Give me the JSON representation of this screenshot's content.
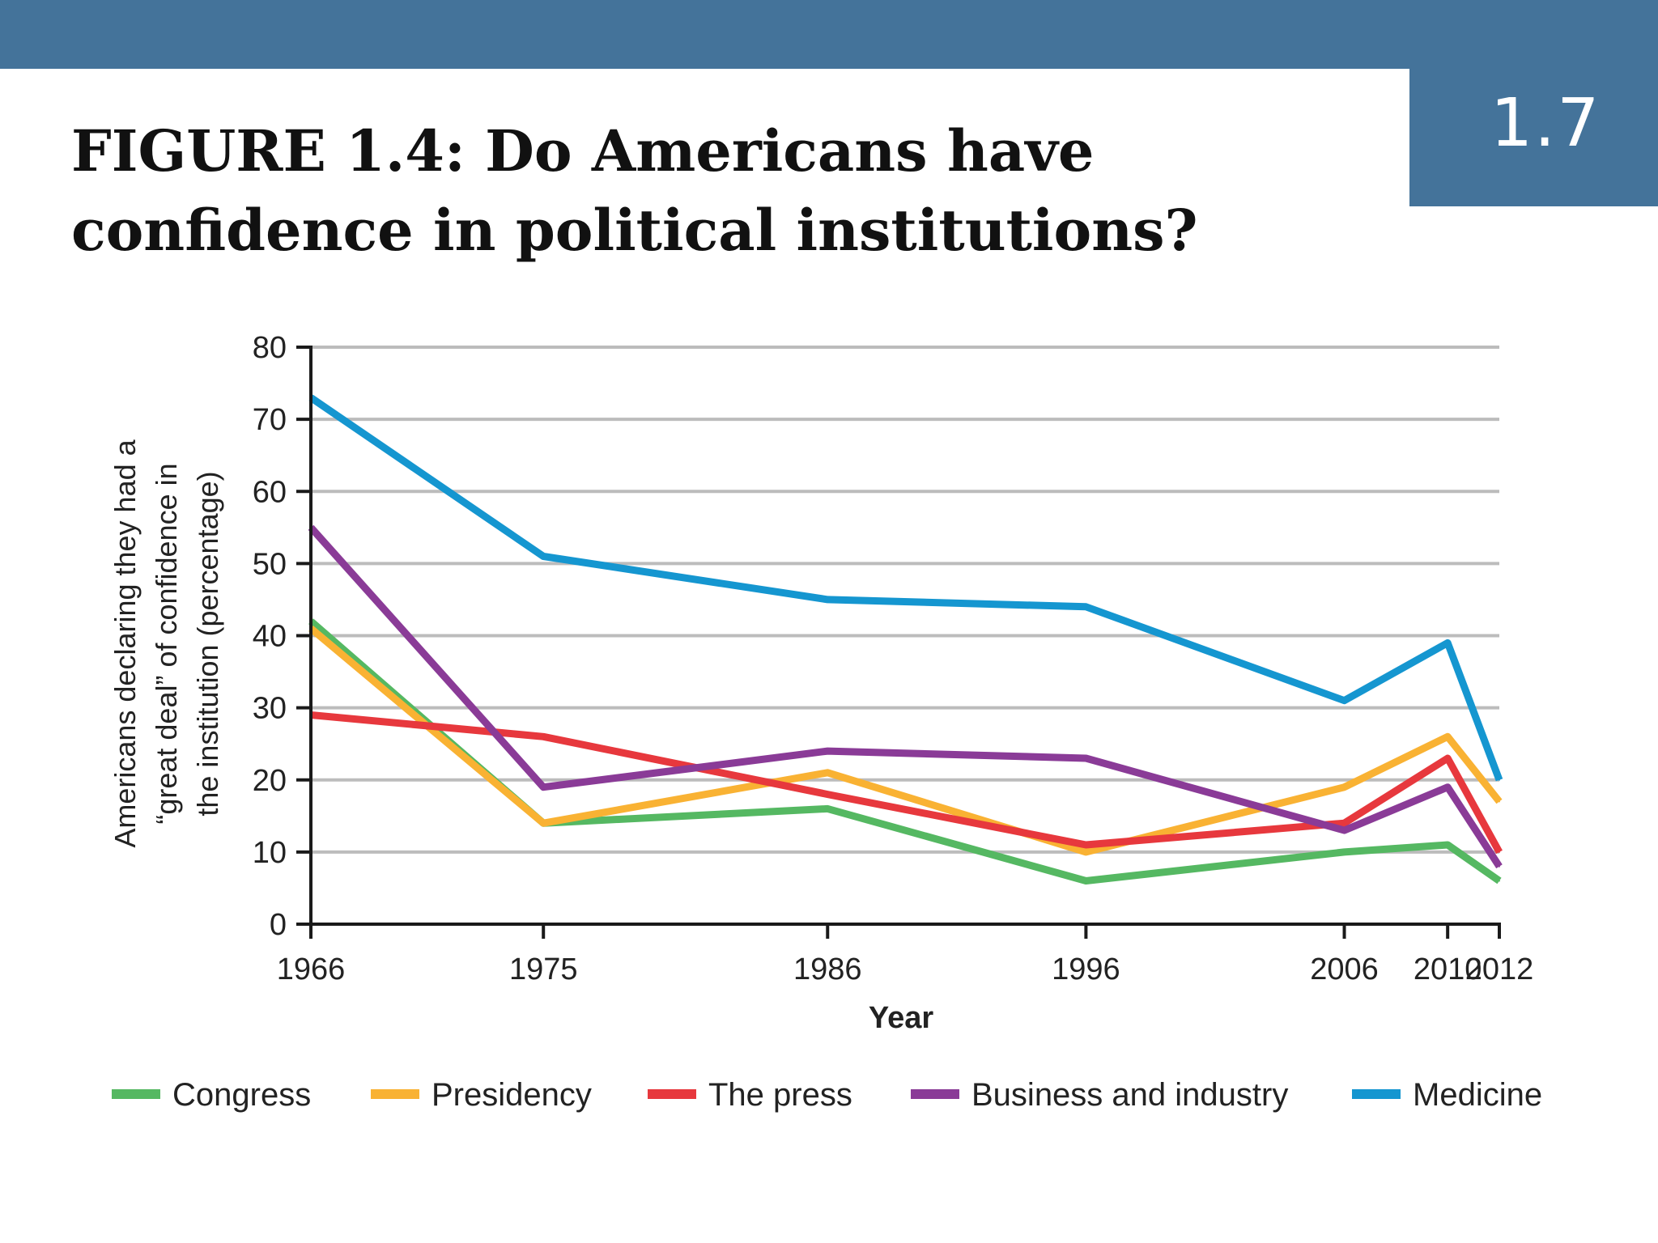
{
  "header": {
    "slide_number": "1.7",
    "title_line1": "FIGURE 1.4: Do Americans have",
    "title_line2": "confidence in political institutions?"
  },
  "chart_data": {
    "type": "line",
    "title": "",
    "xlabel": "Year",
    "ylabel_lines": [
      "Americans declaring they had a",
      "“great deal” of confidence in",
      "the institution (percentage)"
    ],
    "x": [
      "1966",
      "1975",
      "1986",
      "1996",
      "2006",
      "2010",
      "2012"
    ],
    "ylim": [
      0,
      80
    ],
    "yticks": [
      0,
      10,
      20,
      30,
      40,
      50,
      60,
      70,
      80
    ],
    "grid": true,
    "legend_position": "bottom",
    "series": [
      {
        "name": "Congress",
        "color": "#55b862",
        "values": [
          42,
          14,
          16,
          6,
          10,
          11,
          6
        ]
      },
      {
        "name": "Presidency",
        "color": "#f9b233",
        "values": [
          41,
          14,
          21,
          10,
          19,
          26,
          17
        ]
      },
      {
        "name": "The press",
        "color": "#e7383d",
        "values": [
          29,
          26,
          18,
          11,
          14,
          23,
          10
        ]
      },
      {
        "name": "Business and industry",
        "color": "#8a3b97",
        "values": [
          55,
          19,
          24,
          23,
          13,
          19,
          8
        ]
      },
      {
        "name": "Medicine",
        "color": "#1596d0",
        "values": [
          73,
          51,
          45,
          44,
          31,
          39,
          20
        ]
      }
    ]
  }
}
